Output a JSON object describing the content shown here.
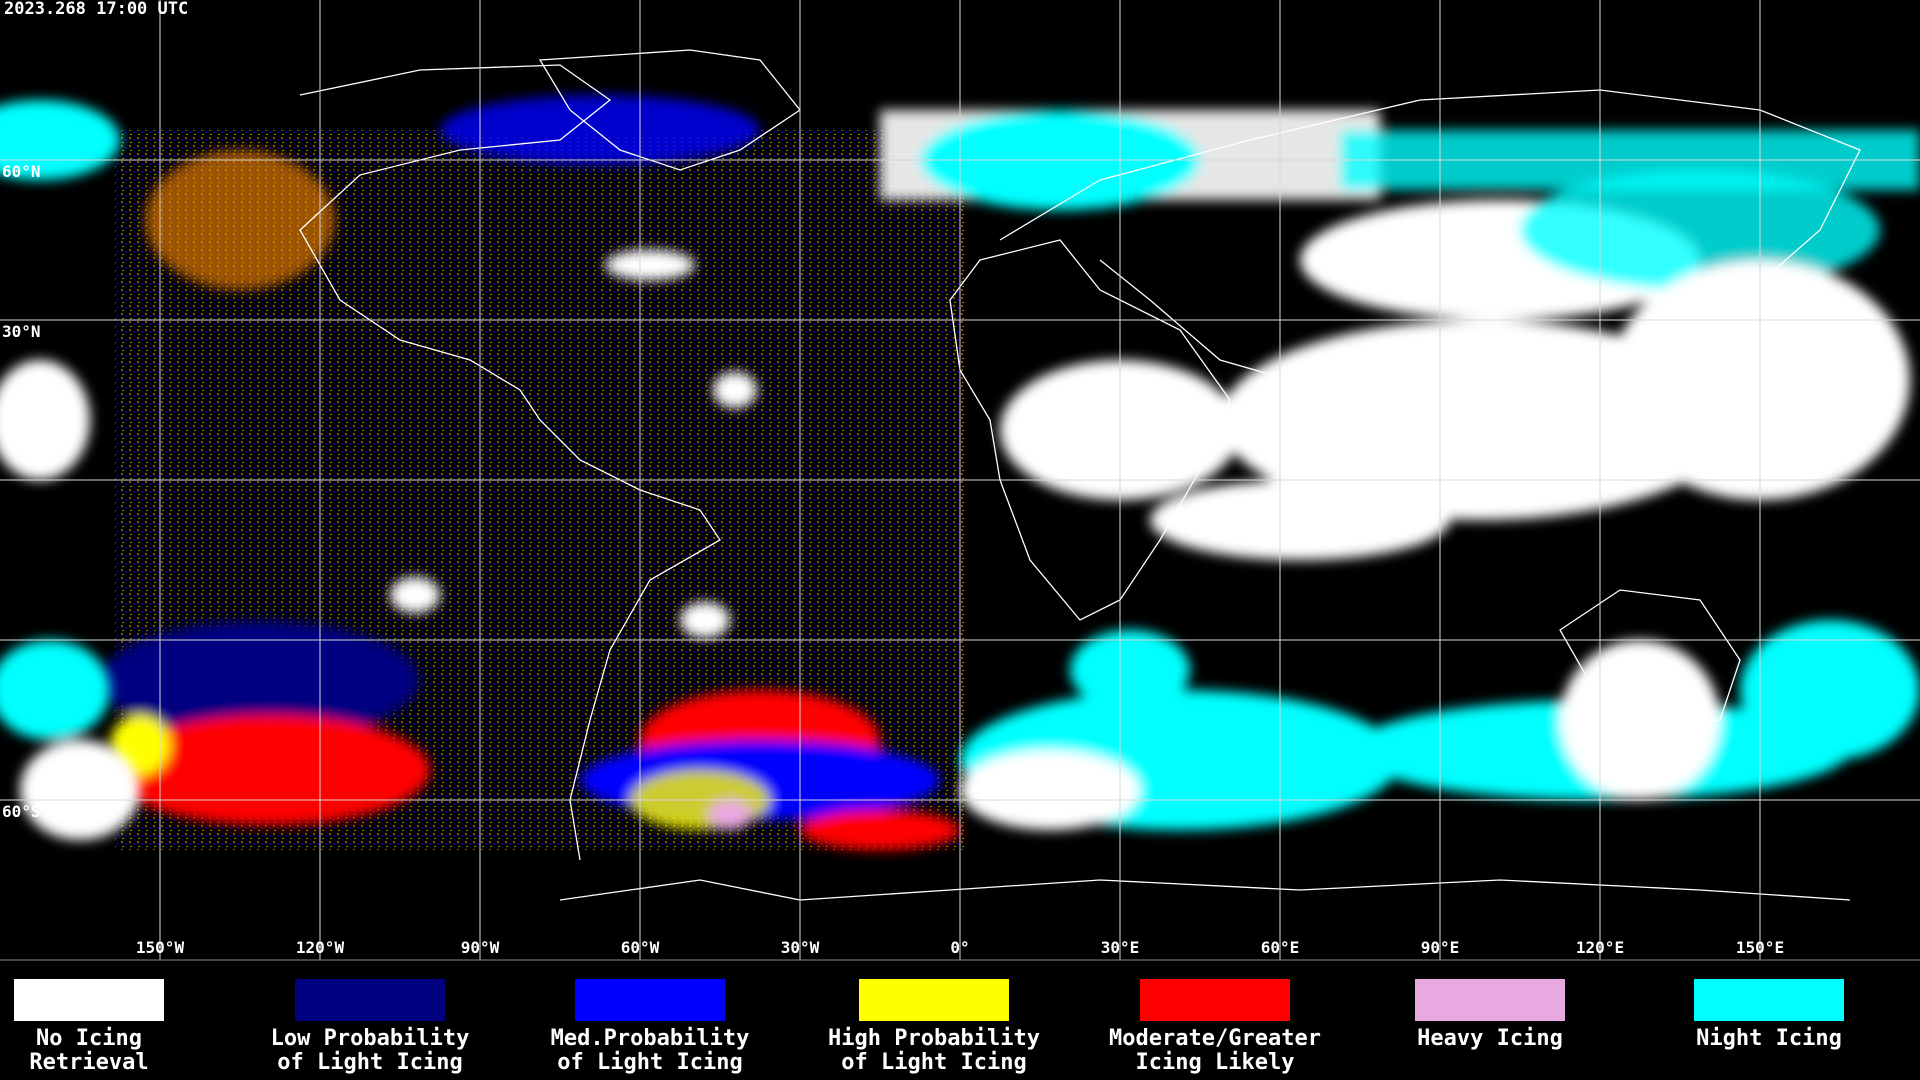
{
  "header": {
    "timestamp": "2023.268 17:00 UTC"
  },
  "map": {
    "longitude_labels": [
      "150°W",
      "120°W",
      "90°W",
      "60°W",
      "30°W",
      "0°",
      "30°E",
      "60°E",
      "90°E",
      "120°E",
      "150°E"
    ],
    "latitude_labels": [
      "60°N",
      "30°N",
      "60°S"
    ]
  },
  "legend": [
    {
      "lines": [
        "No Icing",
        "Retrieval"
      ],
      "color": "#ffffff"
    },
    {
      "lines": [
        "Low Probability",
        "of Light Icing"
      ],
      "color": "#000080"
    },
    {
      "lines": [
        "Med.Probability",
        "of Light Icing"
      ],
      "color": "#0000ff"
    },
    {
      "lines": [
        "High Probability",
        "of Light Icing"
      ],
      "color": "#ffff00"
    },
    {
      "lines": [
        "Moderate/Greater",
        "Icing Likely"
      ],
      "color": "#ff0000"
    },
    {
      "lines": [
        "Heavy Icing"
      ],
      "color": "#e8a8e0"
    },
    {
      "lines": [
        "Night Icing"
      ],
      "color": "#00ffff"
    }
  ]
}
